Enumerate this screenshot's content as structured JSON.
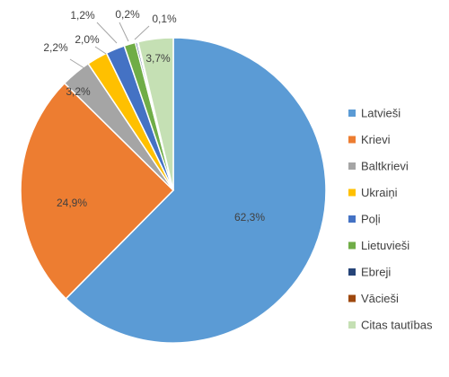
{
  "chart_data": {
    "type": "pie",
    "title": "",
    "legend_position": "right",
    "categories": [
      "Latvieši",
      "Krievi",
      "Baltkrievi",
      "Ukraiņi",
      "Poļi",
      "Lietuvieši",
      "Ebreji",
      "Vācieši",
      "Citas tautības"
    ],
    "values": [
      62.3,
      24.9,
      3.2,
      2.2,
      2.0,
      1.2,
      0.2,
      0.1,
      3.7
    ],
    "data_labels": [
      "62,3%",
      "24,9%",
      "3,2%",
      "2,2%",
      "2,0%",
      "1,2%",
      "0,2%",
      "0,1%",
      "3,7%"
    ],
    "colors": [
      "#5b9bd5",
      "#ed7d31",
      "#a5a5a5",
      "#ffc000",
      "#4472c4",
      "#70ad47",
      "#264478",
      "#9e480e",
      "#c5e0b4"
    ]
  }
}
